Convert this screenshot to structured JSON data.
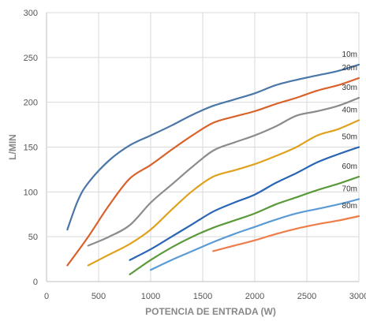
{
  "chart_data": {
    "type": "line",
    "title": "",
    "xlabel": "POTENCIA DE ENTRADA (W)",
    "ylabel": "L/MIN",
    "xlim": [
      0,
      3000
    ],
    "ylim": [
      0,
      300
    ],
    "xticks": [
      0,
      500,
      1000,
      1500,
      2000,
      2500,
      3000
    ],
    "yticks": [
      0,
      50,
      100,
      150,
      200,
      250,
      300
    ],
    "grid": "vertical and horizontal",
    "legend": "inline labels at right end of lines",
    "series": [
      {
        "name": "10m",
        "color": "#4a76a8",
        "points": [
          [
            200,
            58
          ],
          [
            300,
            90
          ],
          [
            400,
            110
          ],
          [
            600,
            135
          ],
          [
            800,
            152
          ],
          [
            1000,
            163
          ],
          [
            1200,
            174
          ],
          [
            1400,
            186
          ],
          [
            1600,
            196
          ],
          [
            1800,
            203
          ],
          [
            2000,
            210
          ],
          [
            2200,
            219
          ],
          [
            2400,
            225
          ],
          [
            2600,
            230
          ],
          [
            2800,
            235
          ],
          [
            3000,
            242
          ]
        ]
      },
      {
        "name": "20m",
        "color": "#d9622b",
        "points": [
          [
            200,
            18
          ],
          [
            400,
            50
          ],
          [
            600,
            85
          ],
          [
            800,
            115
          ],
          [
            1000,
            130
          ],
          [
            1200,
            147
          ],
          [
            1400,
            163
          ],
          [
            1600,
            177
          ],
          [
            1800,
            184
          ],
          [
            2000,
            190
          ],
          [
            2200,
            198
          ],
          [
            2400,
            205
          ],
          [
            2600,
            213
          ],
          [
            2800,
            219
          ],
          [
            3000,
            227
          ]
        ]
      },
      {
        "name": "30m",
        "color": "#8c8c8c",
        "points": [
          [
            400,
            40
          ],
          [
            600,
            50
          ],
          [
            800,
            63
          ],
          [
            1000,
            88
          ],
          [
            1200,
            108
          ],
          [
            1400,
            128
          ],
          [
            1600,
            146
          ],
          [
            1800,
            155
          ],
          [
            2000,
            163
          ],
          [
            2200,
            173
          ],
          [
            2400,
            185
          ],
          [
            2600,
            190
          ],
          [
            2800,
            196
          ],
          [
            3000,
            205
          ]
        ]
      },
      {
        "name": "40m",
        "color": "#e0a21e",
        "points": [
          [
            400,
            18
          ],
          [
            600,
            30
          ],
          [
            800,
            42
          ],
          [
            1000,
            58
          ],
          [
            1200,
            80
          ],
          [
            1400,
            101
          ],
          [
            1600,
            117
          ],
          [
            1800,
            124
          ],
          [
            2000,
            131
          ],
          [
            2200,
            140
          ],
          [
            2400,
            150
          ],
          [
            2600,
            163
          ],
          [
            2800,
            170
          ],
          [
            3000,
            180
          ]
        ]
      },
      {
        "name": "50m",
        "color": "#2a65b5",
        "points": [
          [
            800,
            24
          ],
          [
            1000,
            36
          ],
          [
            1200,
            50
          ],
          [
            1400,
            64
          ],
          [
            1600,
            78
          ],
          [
            1800,
            88
          ],
          [
            2000,
            97
          ],
          [
            2200,
            110
          ],
          [
            2400,
            121
          ],
          [
            2600,
            133
          ],
          [
            2800,
            142
          ],
          [
            3000,
            150
          ]
        ]
      },
      {
        "name": "60m",
        "color": "#5a9a3a",
        "points": [
          [
            800,
            8
          ],
          [
            1000,
            24
          ],
          [
            1200,
            38
          ],
          [
            1400,
            50
          ],
          [
            1600,
            60
          ],
          [
            1800,
            68
          ],
          [
            2000,
            76
          ],
          [
            2200,
            86
          ],
          [
            2400,
            94
          ],
          [
            2600,
            102
          ],
          [
            2800,
            109
          ],
          [
            3000,
            117
          ]
        ]
      },
      {
        "name": "70m",
        "color": "#5b9bd5",
        "points": [
          [
            1000,
            13
          ],
          [
            1200,
            24
          ],
          [
            1400,
            34
          ],
          [
            1600,
            44
          ],
          [
            1800,
            53
          ],
          [
            2000,
            61
          ],
          [
            2200,
            69
          ],
          [
            2400,
            76
          ],
          [
            2600,
            81
          ],
          [
            2800,
            86
          ],
          [
            3000,
            92
          ]
        ]
      },
      {
        "name": "80m",
        "color": "#ee7d4a",
        "points": [
          [
            1600,
            34
          ],
          [
            1800,
            40
          ],
          [
            2000,
            46
          ],
          [
            2200,
            53
          ],
          [
            2400,
            59
          ],
          [
            2600,
            64
          ],
          [
            2800,
            68
          ],
          [
            3000,
            73
          ]
        ]
      }
    ]
  }
}
